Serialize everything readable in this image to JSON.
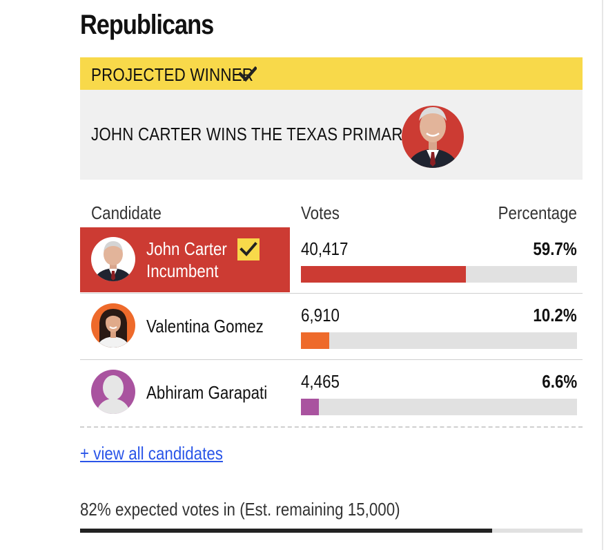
{
  "section": {
    "title": "Republicans"
  },
  "winner": {
    "label": "PROJECTED WINNER",
    "headline": "JOHN CARTER WINS THE TEXAS PRIMARY",
    "banner_color": "#f8d94a"
  },
  "table": {
    "headers": {
      "candidate": "Candidate",
      "votes": "Votes",
      "percentage": "Percentage"
    },
    "rows": [
      {
        "name": "John Carter",
        "sub": "Incumbent",
        "votes": "40,417",
        "pct": "59.7%",
        "share": 0.597,
        "color": "#cc3b33",
        "winner": true
      },
      {
        "name": "Valentina Gomez",
        "sub": "",
        "votes": "6,910",
        "pct": "10.2%",
        "share": 0.102,
        "color": "#ee6a2b",
        "winner": false
      },
      {
        "name": "Abhiram Garapati",
        "sub": "",
        "votes": "4,465",
        "pct": "6.6%",
        "share": 0.066,
        "color": "#a9539f",
        "winner": false
      }
    ]
  },
  "links": {
    "view_all": "+ view all candidates"
  },
  "footer": {
    "expected_text": "82% expected votes in (Est. remaining 15,000)",
    "expected_share": 0.82
  },
  "icons": {
    "check": "check-icon",
    "avatar": "avatar-icon"
  }
}
